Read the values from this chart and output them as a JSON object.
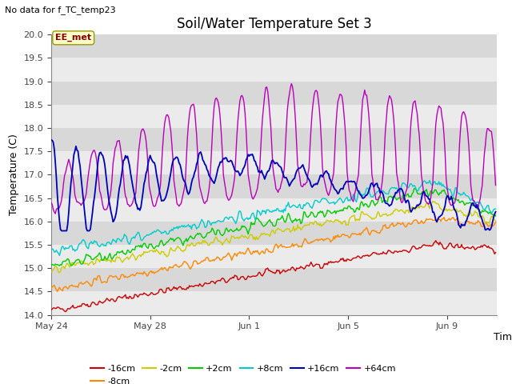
{
  "title": "Soil/Water Temperature Set 3",
  "top_left_text": "No data for f_TC_temp23",
  "ylabel": "Temperature (C)",
  "xlabel": "Time",
  "ylim": [
    14.0,
    20.0
  ],
  "yticks": [
    14.0,
    14.5,
    15.0,
    15.5,
    16.0,
    16.5,
    17.0,
    17.5,
    18.0,
    18.5,
    19.0,
    19.5,
    20.0
  ],
  "band_color_light": "#ebebeb",
  "band_color_dark": "#d8d8d8",
  "legend_entries": [
    "-16cm",
    "-8cm",
    "-2cm",
    "+2cm",
    "+8cm",
    "+16cm",
    "+64cm"
  ],
  "line_colors": [
    "#cc0000",
    "#ff8800",
    "#cccc00",
    "#00cc00",
    "#00cccc",
    "#0000bb",
    "#bb00bb"
  ],
  "xtick_labels": [
    "May 24",
    "May 28",
    "Jun 1",
    "Jun 5",
    "Jun 9"
  ],
  "annotation_text": "EE_met",
  "annotation_box_color": "#ffffcc",
  "annotation_box_edge": "#999900"
}
